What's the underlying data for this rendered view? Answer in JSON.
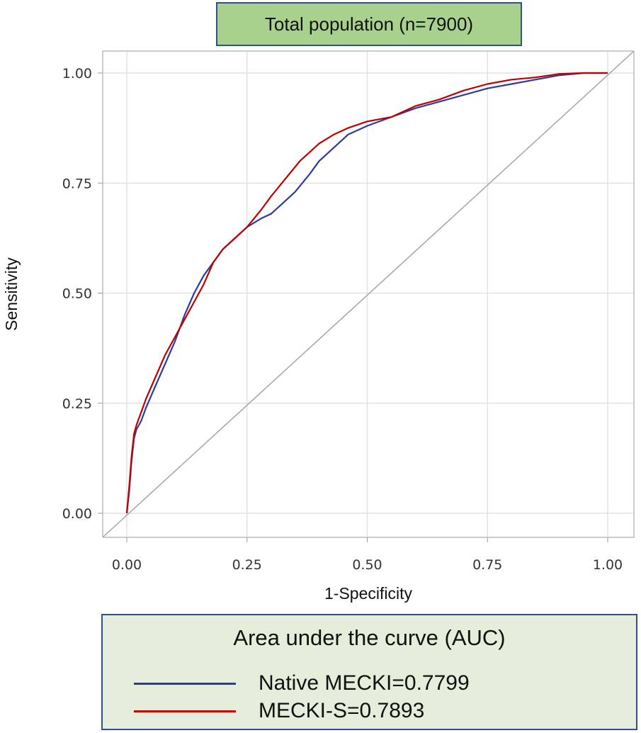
{
  "chart_data": {
    "type": "line",
    "title": "Total population  (n=7900)",
    "xlabel": "1-Specificity",
    "ylabel": "Sensitivity",
    "xlim": [
      0,
      1
    ],
    "ylim": [
      0,
      1
    ],
    "x_ticks": [
      "0.00",
      "0.25",
      "0.50",
      "0.75",
      "1.00"
    ],
    "y_ticks": [
      "0.00",
      "0.25",
      "0.50",
      "0.75",
      "1.00"
    ],
    "grid": true,
    "reference_line": {
      "from": [
        0,
        0
      ],
      "to": [
        1,
        1
      ],
      "color": "#a6a6a6"
    },
    "series": [
      {
        "name": "Native MECKI=0.7799",
        "color": "#2b3d9c",
        "points": [
          [
            0,
            0
          ],
          [
            0.005,
            0.05
          ],
          [
            0.01,
            0.12
          ],
          [
            0.015,
            0.17
          ],
          [
            0.02,
            0.19
          ],
          [
            0.03,
            0.21
          ],
          [
            0.04,
            0.24
          ],
          [
            0.06,
            0.29
          ],
          [
            0.08,
            0.34
          ],
          [
            0.1,
            0.39
          ],
          [
            0.12,
            0.45
          ],
          [
            0.14,
            0.5
          ],
          [
            0.16,
            0.54
          ],
          [
            0.18,
            0.57
          ],
          [
            0.2,
            0.6
          ],
          [
            0.22,
            0.62
          ],
          [
            0.25,
            0.65
          ],
          [
            0.28,
            0.67
          ],
          [
            0.3,
            0.68
          ],
          [
            0.32,
            0.7
          ],
          [
            0.35,
            0.73
          ],
          [
            0.38,
            0.77
          ],
          [
            0.4,
            0.8
          ],
          [
            0.43,
            0.83
          ],
          [
            0.46,
            0.86
          ],
          [
            0.5,
            0.88
          ],
          [
            0.55,
            0.9
          ],
          [
            0.6,
            0.92
          ],
          [
            0.65,
            0.935
          ],
          [
            0.7,
            0.95
          ],
          [
            0.75,
            0.965
          ],
          [
            0.8,
            0.975
          ],
          [
            0.85,
            0.985
          ],
          [
            0.9,
            0.995
          ],
          [
            0.95,
            1.0
          ],
          [
            1.0,
            1.0
          ]
        ]
      },
      {
        "name": "MECKI-S=0.7893",
        "color": "#c00000",
        "points": [
          [
            0,
            0
          ],
          [
            0.005,
            0.06
          ],
          [
            0.01,
            0.13
          ],
          [
            0.015,
            0.18
          ],
          [
            0.02,
            0.2
          ],
          [
            0.03,
            0.23
          ],
          [
            0.04,
            0.26
          ],
          [
            0.06,
            0.31
          ],
          [
            0.08,
            0.36
          ],
          [
            0.1,
            0.4
          ],
          [
            0.12,
            0.44
          ],
          [
            0.14,
            0.48
          ],
          [
            0.16,
            0.52
          ],
          [
            0.18,
            0.57
          ],
          [
            0.2,
            0.6
          ],
          [
            0.22,
            0.62
          ],
          [
            0.25,
            0.65
          ],
          [
            0.28,
            0.69
          ],
          [
            0.3,
            0.72
          ],
          [
            0.33,
            0.76
          ],
          [
            0.36,
            0.8
          ],
          [
            0.4,
            0.84
          ],
          [
            0.43,
            0.86
          ],
          [
            0.46,
            0.875
          ],
          [
            0.5,
            0.89
          ],
          [
            0.55,
            0.9
          ],
          [
            0.6,
            0.925
          ],
          [
            0.65,
            0.94
          ],
          [
            0.7,
            0.96
          ],
          [
            0.75,
            0.975
          ],
          [
            0.8,
            0.985
          ],
          [
            0.85,
            0.99
          ],
          [
            0.9,
            0.998
          ],
          [
            0.95,
            1.0
          ],
          [
            1.0,
            1.0
          ]
        ]
      }
    ],
    "legend": {
      "title": "Area under the curve (AUC)",
      "position": "bottom"
    }
  }
}
